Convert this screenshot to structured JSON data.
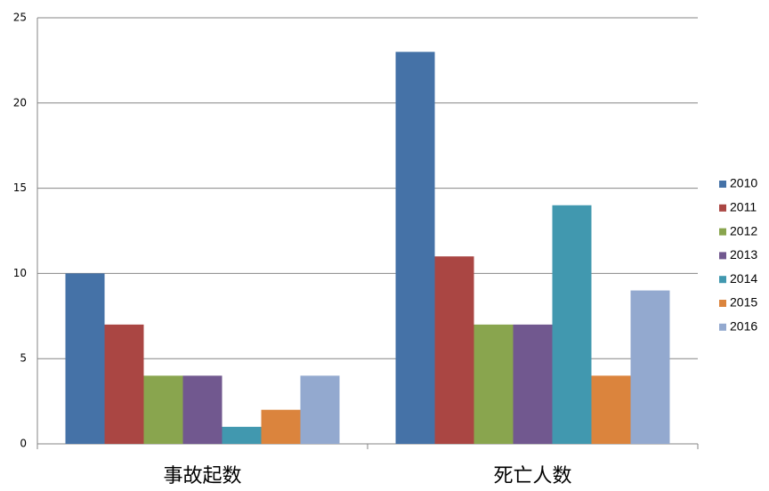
{
  "chart_data": {
    "type": "bar",
    "categories": [
      "事故起数",
      "死亡人数"
    ],
    "series": [
      {
        "name": "2010",
        "color": "#4572a7",
        "values": [
          10,
          23
        ]
      },
      {
        "name": "2011",
        "color": "#aa4643",
        "values": [
          7,
          11
        ]
      },
      {
        "name": "2012",
        "color": "#89a54e",
        "values": [
          4,
          7
        ]
      },
      {
        "name": "2013",
        "color": "#71588f",
        "values": [
          4,
          7
        ]
      },
      {
        "name": "2014",
        "color": "#4198af",
        "values": [
          1,
          14
        ]
      },
      {
        "name": "2015",
        "color": "#db843d",
        "values": [
          2,
          4
        ]
      },
      {
        "name": "2016",
        "color": "#93a9cf",
        "values": [
          4,
          9
        ]
      }
    ],
    "ylim": [
      0,
      25
    ],
    "yticks": [
      0,
      5,
      10,
      15,
      20,
      25
    ],
    "grid": true,
    "legend": "right"
  }
}
